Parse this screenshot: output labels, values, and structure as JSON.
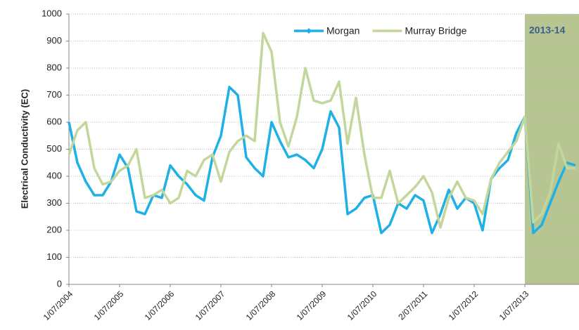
{
  "chart_data": {
    "type": "line",
    "y_label": "Electrical Conductivity (EC)",
    "categories": [
      "1/07/2004",
      null,
      null,
      null,
      null,
      null,
      "1/07/2005",
      null,
      null,
      null,
      null,
      null,
      "1/07/2006",
      null,
      null,
      null,
      null,
      null,
      "1/07/2007",
      null,
      null,
      null,
      null,
      null,
      "1/07/2008",
      null,
      null,
      null,
      null,
      null,
      "1/07/2009",
      null,
      null,
      null,
      null,
      null,
      "1/07/2010",
      null,
      null,
      null,
      null,
      null,
      "2/07/2011",
      null,
      null,
      null,
      null,
      null,
      "1/07/2012",
      null,
      null,
      null,
      null,
      null,
      "1/07/2013",
      null,
      null,
      null,
      null,
      null,
      null
    ],
    "series": [
      {
        "name": "Morgan",
        "color": "#1fb0e6",
        "values": [
          600,
          450,
          380,
          330,
          330,
          380,
          480,
          430,
          270,
          260,
          330,
          320,
          440,
          400,
          370,
          330,
          310,
          470,
          550,
          730,
          700,
          470,
          430,
          400,
          600,
          530,
          470,
          480,
          460,
          430,
          500,
          640,
          580,
          260,
          280,
          320,
          330,
          190,
          220,
          300,
          280,
          330,
          310,
          190,
          260,
          350,
          280,
          320,
          300,
          200,
          390,
          430,
          460,
          560,
          620,
          190,
          220,
          300,
          380,
          450,
          440
        ]
      },
      {
        "name": "Murray Bridge",
        "color": "#c3d69b",
        "values": [
          480,
          570,
          600,
          430,
          370,
          380,
          420,
          440,
          500,
          320,
          330,
          350,
          300,
          320,
          420,
          400,
          460,
          480,
          380,
          490,
          530,
          550,
          530,
          930,
          860,
          600,
          510,
          620,
          800,
          680,
          670,
          680,
          750,
          520,
          690,
          480,
          320,
          320,
          420,
          300,
          330,
          360,
          400,
          340,
          210,
          320,
          380,
          320,
          310,
          260,
          390,
          450,
          490,
          530,
          620,
          230,
          260,
          340,
          520,
          430,
          430
        ]
      }
    ],
    "highlight": {
      "label": "2013-14",
      "from": "1/07/2013",
      "color": "#b7c593"
    },
    "ylim": [
      0,
      1000
    ],
    "yticks": [
      0,
      100,
      200,
      300,
      400,
      500,
      600,
      700,
      800,
      900,
      1000
    ],
    "grid": true,
    "legend": "top"
  }
}
